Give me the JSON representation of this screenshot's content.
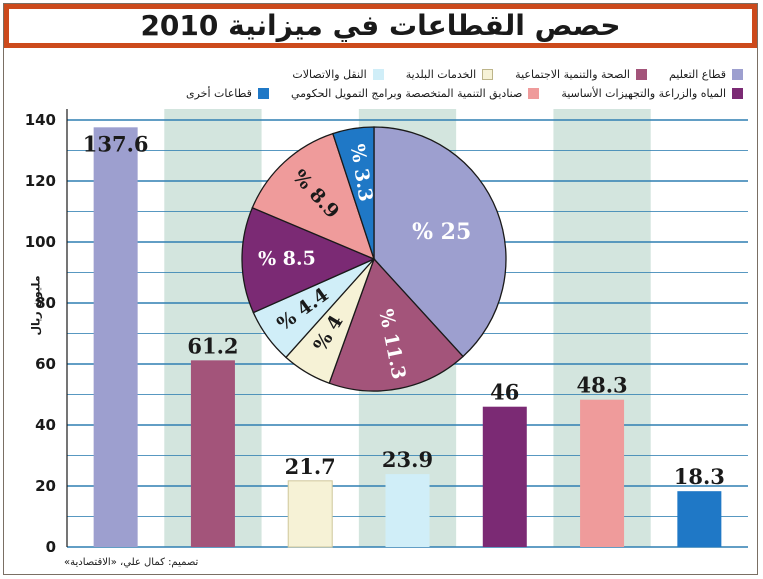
{
  "chart_data": {
    "type": "bar",
    "title": "حصص القطاعات في ميزانية 2010",
    "ylabel": "مليون ريال",
    "ylim": [
      0,
      140
    ],
    "yticks": [
      0,
      20,
      40,
      60,
      80,
      100,
      120,
      140
    ],
    "bars": [
      {
        "value": 137.6,
        "label": "137.6",
        "color": "#9d9fcf"
      },
      {
        "value": 61.2,
        "label": "61.2",
        "color": "#a3547a"
      },
      {
        "value": 21.7,
        "label": "21.7",
        "color": "#f6f2d6"
      },
      {
        "value": 23.9,
        "label": "23.9",
        "color": "#d0eef8"
      },
      {
        "value": 46,
        "label": "46",
        "color": "#7b2a74"
      },
      {
        "value": 48.3,
        "label": "48.3",
        "color": "#ef9b9b"
      },
      {
        "value": 18.3,
        "label": "18.3",
        "color": "#1f78c6"
      }
    ],
    "legend": [
      {
        "label": "قطاع التعليم",
        "color": "#9d9fcf"
      },
      {
        "label": "الصحة والتنمية الاجتماعية",
        "color": "#a3547a"
      },
      {
        "label": "الخدمات البلدية",
        "color": "#f6f2d6"
      },
      {
        "label": "النقل والاتصالات",
        "color": "#d0eef8"
      },
      {
        "label": "المياه والزراعة والتجهيزات الأساسية",
        "color": "#7b2a74"
      },
      {
        "label": "صناديق التنمية المتخصصة وبرامج التمويل الحكومي",
        "color": "#ef9b9b"
      },
      {
        "label": "قطاعات أخرى",
        "color": "#1f78c6"
      }
    ],
    "pie": [
      {
        "value": 25,
        "label": "% 25",
        "color": "#9d9fcf"
      },
      {
        "value": 11.3,
        "label": "% 11.3",
        "color": "#a3547a"
      },
      {
        "value": 4,
        "label": "% 4",
        "color": "#f6f2d6"
      },
      {
        "value": 4.4,
        "label": "% 4.4",
        "color": "#d0eef8"
      },
      {
        "value": 8.5,
        "label": "% 8.5",
        "color": "#7b2a74"
      },
      {
        "value": 8.9,
        "label": "% 8.9",
        "color": "#ef9b9b"
      },
      {
        "value": 3.3,
        "label": "% 3.3",
        "color": "#1f78c6"
      }
    ],
    "grid": true
  },
  "colors": {
    "title_bar": "#cc4a1c",
    "gridline": "#2f7fb2",
    "column_band": "#d3e5de"
  },
  "credit": "تصميم: كمال علي، «الاقتصادية»"
}
